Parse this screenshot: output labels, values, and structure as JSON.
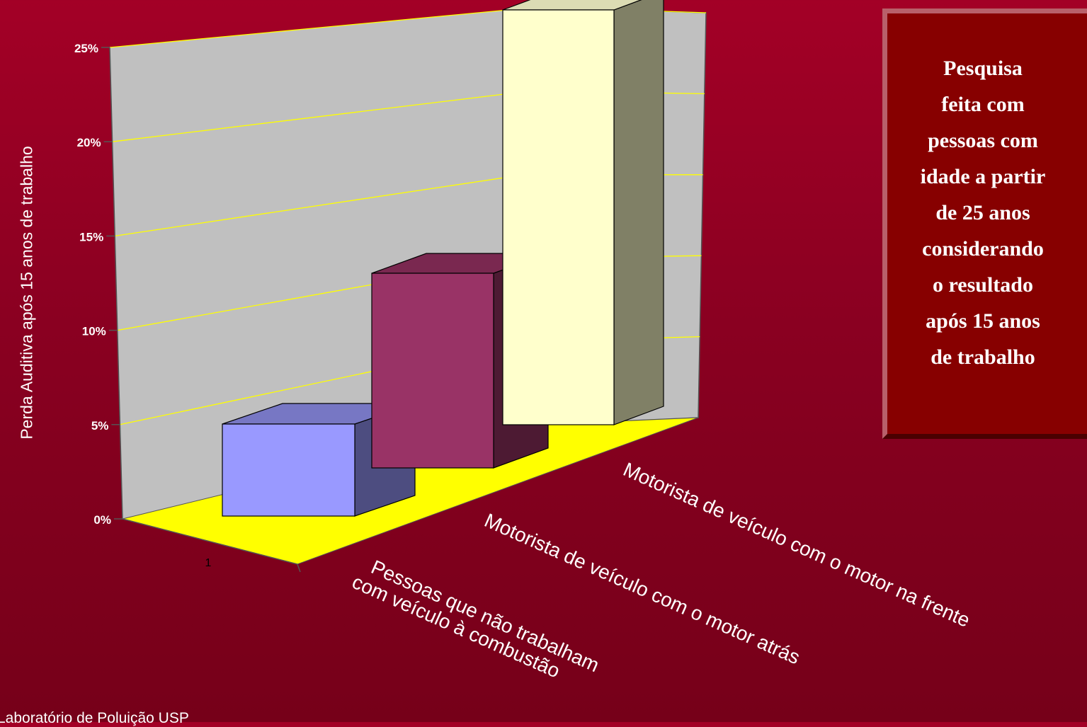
{
  "chart_data": {
    "type": "bar",
    "ylabel": "Perda Auditiva após 15 anos de trabalho",
    "xlabel": "",
    "ylim": [
      0,
      25
    ],
    "yticks": [
      "0%",
      "5%",
      "10%",
      "15%",
      "20%",
      "25%"
    ],
    "categories": [
      "1"
    ],
    "series": [
      {
        "name": "Pessoas que não trabalham com veículo à combustão",
        "values": [
          5
        ],
        "color": "#9999ff"
      },
      {
        "name": "Motorista de veículo com o motor atrás",
        "values": [
          11
        ],
        "color": "#993366"
      },
      {
        "name": "Motorista de veículo com o motor na frente",
        "values": [
          24
        ],
        "color": "#ffffcc"
      }
    ],
    "floor_color": "#ffff00",
    "wall_color": "#c0c0c0",
    "gridline_color": "#ffff00",
    "grid": true
  },
  "note": {
    "lines": [
      "Pesquisa",
      "feita com",
      "pessoas com",
      "idade a partir",
      "de 25 anos",
      "considerando",
      "o resultado",
      "após 15 anos",
      "de trabalho"
    ]
  },
  "footer": "Laboratório de Poluição USP"
}
